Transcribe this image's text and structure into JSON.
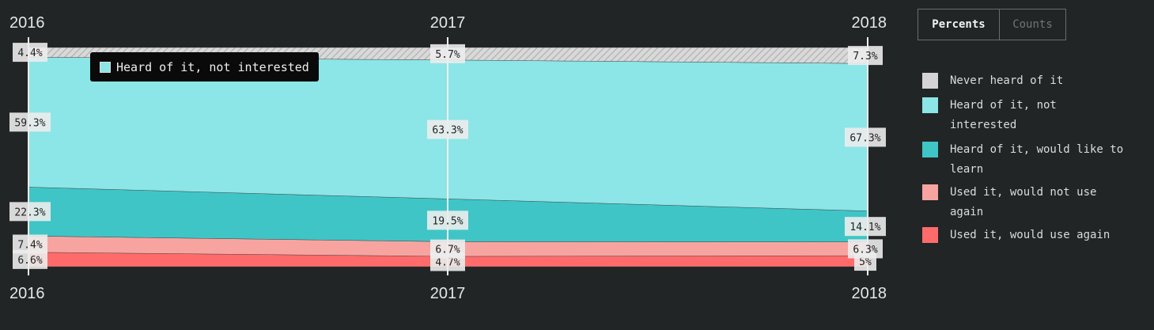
{
  "controls": {
    "percents_label": "Percents",
    "counts_label": "Counts",
    "active": "Percents"
  },
  "tooltip": {
    "label": "Heard of it, not interested",
    "color": "#8de5e6"
  },
  "chart_data": {
    "type": "area",
    "stacked": true,
    "normalized_to": 100,
    "x": [
      "2016",
      "2017",
      "2018"
    ],
    "series": [
      {
        "name": "Used it, would use again",
        "color": "#ff6b6b",
        "values": [
          6.6,
          4.7,
          5
        ],
        "labels": [
          "6.6%",
          "4.7%",
          "5%"
        ]
      },
      {
        "name": "Used it, would not use again",
        "color": "#f7a4a0",
        "values": [
          7.4,
          6.7,
          6.3
        ],
        "labels": [
          "7.4%",
          "6.7%",
          "6.3%"
        ]
      },
      {
        "name": "Heard of it, would like to learn",
        "color": "#40c5c7",
        "values": [
          22.3,
          19.5,
          14.1
        ],
        "labels": [
          "22.3%",
          "19.5%",
          "14.1%"
        ]
      },
      {
        "name": "Heard of it, not interested",
        "color": "#8ce5e6",
        "values": [
          59.3,
          63.3,
          67.3
        ],
        "labels": [
          "59.3%",
          "63.3%",
          "67.3%"
        ]
      },
      {
        "name": "Never heard of it",
        "color": "#d4d4d4",
        "pattern": "hatched",
        "values": [
          4.4,
          5.7,
          7.3
        ],
        "labels": [
          "4.4%",
          "5.7%",
          "7.3%"
        ]
      }
    ],
    "legend_order": [
      "Never heard of it",
      "Heard of it, not interested",
      "Heard of it, would like to learn",
      "Used it, would not use again",
      "Used it, would use again"
    ],
    "legend_position": "right"
  }
}
